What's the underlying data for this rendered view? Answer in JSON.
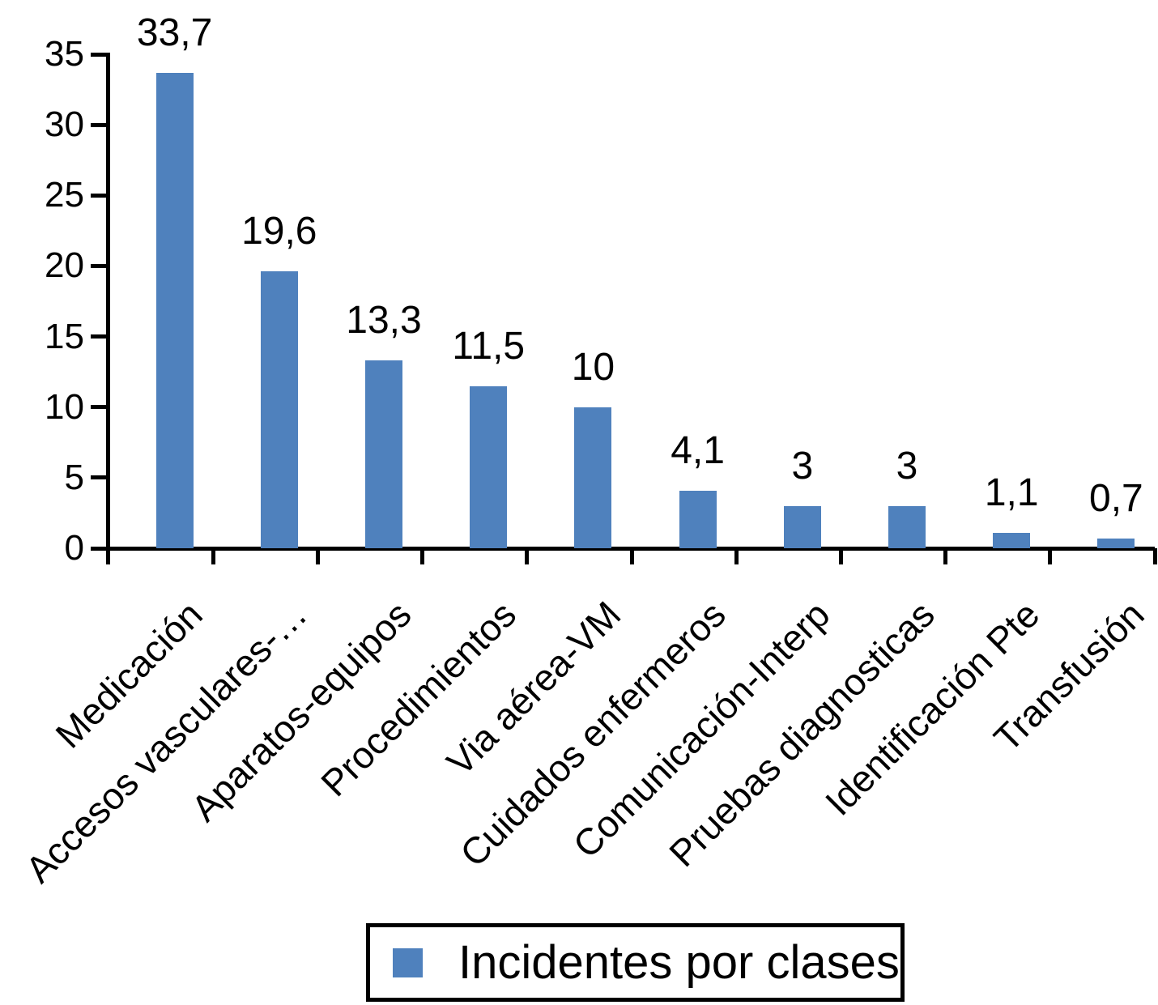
{
  "chart_data": {
    "type": "bar",
    "categories": [
      "Medicación",
      "Accesos vasculares-…",
      "Aparatos-equipos",
      "Procedimientos",
      "Via aérea-VM",
      "Cuidados enfermeros",
      "Comunicación-Interp",
      "Pruebas diagnosticas",
      "Identificación Pte",
      "Transfusión"
    ],
    "values": [
      33.7,
      19.6,
      13.3,
      11.5,
      10,
      4.1,
      3,
      3,
      1.1,
      0.7
    ],
    "value_labels": [
      "33,7",
      "19,6",
      "13,3",
      "11,5",
      "10",
      "4,1",
      "3",
      "3",
      "1,1",
      "0,7"
    ],
    "title": "",
    "xlabel": "",
    "ylabel": "",
    "ylim": [
      0,
      35
    ],
    "yticks": [
      0,
      5,
      10,
      15,
      20,
      25,
      30,
      35
    ],
    "grid": false,
    "bar_color": "#4f81bd",
    "axis_color": "#000000",
    "text_color": "#000000",
    "legend": {
      "label": "Incidentes por clases",
      "position": "bottom"
    }
  }
}
